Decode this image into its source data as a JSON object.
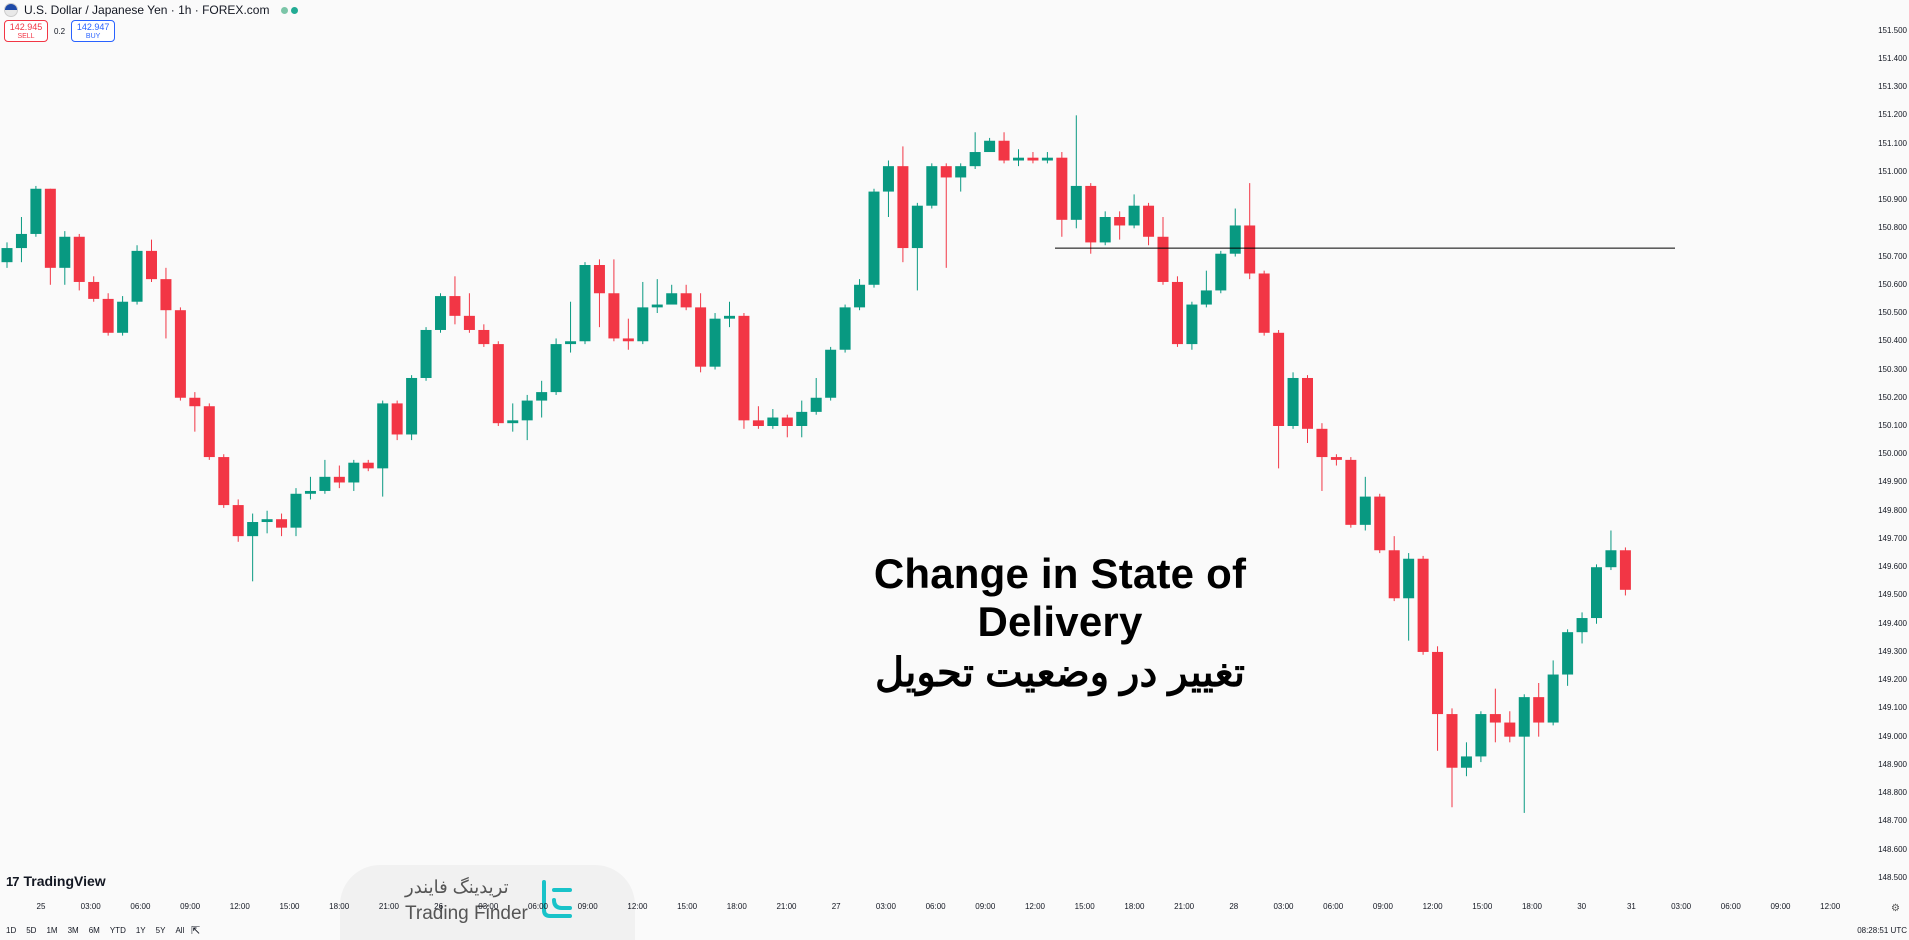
{
  "header": {
    "symbol_title": "U.S. Dollar / Japanese Yen · 1h · FOREX.com",
    "status_dot_colors": [
      "#7bc5a8",
      "#22ab94"
    ]
  },
  "trade": {
    "sell_price": "142.945",
    "sell_label": "SELL",
    "spread": "0.2",
    "buy_price": "142.947",
    "buy_label": "BUY"
  },
  "title": {
    "english": "Change in State of Delivery",
    "persian": "تغییر در وضعیت تحویل"
  },
  "branding": {
    "tradingview": "TradingView",
    "tradingview_mark": "17",
    "watermark_fa": "تریدینگ فایندر",
    "watermark_en": "Trading Finder"
  },
  "bottom_bar": {
    "periods": [
      "1D",
      "5D",
      "1M",
      "3M",
      "6M",
      "YTD",
      "1Y",
      "5Y",
      "All"
    ],
    "clock": "08:28:51 UTC"
  },
  "colors": {
    "up": "#089981",
    "down": "#f23645",
    "level_line": "#000000"
  },
  "chart_data": {
    "type": "candlestick",
    "symbol": "USDJPY",
    "timeframe": "1h",
    "y_ticks": [
      "151.500",
      "151.400",
      "151.300",
      "151.200",
      "151.100",
      "151.000",
      "150.900",
      "150.800",
      "150.700",
      "150.600",
      "150.500",
      "150.400",
      "150.300",
      "150.200",
      "150.100",
      "150.000",
      "149.900",
      "149.800",
      "149.700",
      "149.600",
      "149.500",
      "149.400",
      "149.300",
      "149.200",
      "149.100",
      "149.000",
      "148.900",
      "148.800",
      "148.700",
      "148.600",
      "148.500"
    ],
    "x_ticks": [
      "25",
      "03:00",
      "06:00",
      "09:00",
      "12:00",
      "15:00",
      "18:00",
      "21:00",
      "26",
      "03:00",
      "06:00",
      "09:00",
      "12:00",
      "15:00",
      "18:00",
      "21:00",
      "27",
      "03:00",
      "06:00",
      "09:00",
      "12:00",
      "15:00",
      "18:00",
      "21:00",
      "28",
      "03:00",
      "06:00",
      "09:00",
      "12:00",
      "15:00",
      "18:00",
      "30",
      "31",
      "03:00",
      "06:00",
      "09:00",
      "12:00"
    ],
    "ylim": [
      148.45,
      151.58
    ],
    "level_line": 150.73,
    "candles": [
      [
        150.68,
        150.73,
        150.66,
        150.75
      ],
      [
        150.73,
        150.78,
        150.68,
        150.84
      ],
      [
        150.78,
        150.94,
        150.77,
        150.95
      ],
      [
        150.94,
        150.66,
        150.6,
        150.94
      ],
      [
        150.66,
        150.77,
        150.6,
        150.79
      ],
      [
        150.77,
        150.61,
        150.58,
        150.78
      ],
      [
        150.61,
        150.55,
        150.54,
        150.63
      ],
      [
        150.55,
        150.43,
        150.42,
        150.57
      ],
      [
        150.43,
        150.54,
        150.42,
        150.56
      ],
      [
        150.54,
        150.72,
        150.53,
        150.74
      ],
      [
        150.72,
        150.62,
        150.61,
        150.76
      ],
      [
        150.62,
        150.51,
        150.41,
        150.66
      ],
      [
        150.51,
        150.2,
        150.19,
        150.52
      ],
      [
        150.2,
        150.17,
        150.08,
        150.22
      ],
      [
        150.17,
        149.99,
        149.98,
        150.18
      ],
      [
        149.99,
        149.82,
        149.81,
        150.0
      ],
      [
        149.82,
        149.71,
        149.69,
        149.84
      ],
      [
        149.71,
        149.76,
        149.55,
        149.79
      ],
      [
        149.76,
        149.77,
        149.72,
        149.8
      ],
      [
        149.77,
        149.74,
        149.71,
        149.79
      ],
      [
        149.74,
        149.86,
        149.71,
        149.88
      ],
      [
        149.86,
        149.87,
        149.84,
        149.92
      ],
      [
        149.87,
        149.92,
        149.86,
        149.98
      ],
      [
        149.92,
        149.9,
        149.88,
        149.96
      ],
      [
        149.9,
        149.97,
        149.87,
        149.98
      ],
      [
        149.97,
        149.95,
        149.94,
        149.98
      ],
      [
        149.95,
        150.18,
        149.85,
        150.19
      ],
      [
        150.18,
        150.07,
        150.05,
        150.19
      ],
      [
        150.07,
        150.27,
        150.05,
        150.28
      ],
      [
        150.27,
        150.44,
        150.26,
        150.45
      ],
      [
        150.44,
        150.56,
        150.43,
        150.57
      ],
      [
        150.56,
        150.49,
        150.46,
        150.63
      ],
      [
        150.49,
        150.44,
        150.43,
        150.57
      ],
      [
        150.44,
        150.39,
        150.38,
        150.46
      ],
      [
        150.39,
        150.11,
        150.1,
        150.4
      ],
      [
        150.11,
        150.12,
        150.08,
        150.18
      ],
      [
        150.12,
        150.19,
        150.05,
        150.21
      ],
      [
        150.19,
        150.22,
        150.13,
        150.26
      ],
      [
        150.22,
        150.39,
        150.21,
        150.41
      ],
      [
        150.39,
        150.4,
        150.36,
        150.54
      ],
      [
        150.4,
        150.67,
        150.39,
        150.68
      ],
      [
        150.67,
        150.57,
        150.45,
        150.69
      ],
      [
        150.57,
        150.41,
        150.4,
        150.69
      ],
      [
        150.41,
        150.4,
        150.37,
        150.48
      ],
      [
        150.4,
        150.52,
        150.39,
        150.61
      ],
      [
        150.52,
        150.53,
        150.5,
        150.62
      ],
      [
        150.53,
        150.57,
        150.55,
        150.6
      ],
      [
        150.57,
        150.52,
        150.51,
        150.6
      ],
      [
        150.52,
        150.31,
        150.29,
        150.57
      ],
      [
        150.31,
        150.48,
        150.3,
        150.5
      ],
      [
        150.48,
        150.49,
        150.45,
        150.54
      ],
      [
        150.49,
        150.12,
        150.09,
        150.5
      ],
      [
        150.12,
        150.1,
        150.09,
        150.17
      ],
      [
        150.1,
        150.13,
        150.09,
        150.16
      ],
      [
        150.13,
        150.1,
        150.06,
        150.14
      ],
      [
        150.1,
        150.15,
        150.06,
        150.19
      ],
      [
        150.15,
        150.2,
        150.14,
        150.27
      ],
      [
        150.2,
        150.37,
        150.19,
        150.38
      ],
      [
        150.37,
        150.52,
        150.36,
        150.53
      ],
      [
        150.52,
        150.6,
        150.51,
        150.62
      ],
      [
        150.6,
        150.93,
        150.59,
        150.94
      ],
      [
        150.93,
        151.02,
        150.84,
        151.04
      ],
      [
        151.02,
        150.73,
        150.68,
        151.09
      ],
      [
        150.73,
        150.88,
        150.58,
        150.89
      ],
      [
        150.88,
        151.02,
        150.87,
        151.03
      ],
      [
        151.02,
        150.98,
        150.66,
        151.03
      ],
      [
        150.98,
        151.02,
        150.93,
        151.03
      ],
      [
        151.02,
        151.07,
        151.01,
        151.14
      ],
      [
        151.07,
        151.11,
        151.08,
        151.12
      ],
      [
        151.11,
        151.04,
        151.03,
        151.14
      ],
      [
        151.04,
        151.05,
        151.02,
        151.08
      ],
      [
        151.05,
        151.04,
        151.03,
        151.07
      ],
      [
        151.04,
        151.05,
        151.03,
        151.07
      ],
      [
        151.05,
        150.83,
        150.77,
        151.07
      ],
      [
        150.83,
        150.95,
        150.8,
        151.2
      ],
      [
        150.95,
        150.75,
        150.71,
        150.96
      ],
      [
        150.75,
        150.84,
        150.74,
        150.86
      ],
      [
        150.84,
        150.81,
        150.76,
        150.86
      ],
      [
        150.81,
        150.88,
        150.8,
        150.92
      ],
      [
        150.88,
        150.77,
        150.74,
        150.89
      ],
      [
        150.77,
        150.61,
        150.6,
        150.84
      ],
      [
        150.61,
        150.39,
        150.38,
        150.63
      ],
      [
        150.39,
        150.53,
        150.37,
        150.54
      ],
      [
        150.53,
        150.58,
        150.52,
        150.65
      ],
      [
        150.58,
        150.71,
        150.57,
        150.72
      ],
      [
        150.71,
        150.81,
        150.7,
        150.87
      ],
      [
        150.81,
        150.64,
        150.62,
        150.96
      ],
      [
        150.64,
        150.43,
        150.42,
        150.65
      ],
      [
        150.43,
        150.1,
        149.95,
        150.44
      ],
      [
        150.1,
        150.27,
        150.09,
        150.29
      ],
      [
        150.27,
        150.09,
        150.04,
        150.28
      ],
      [
        150.09,
        149.99,
        149.87,
        150.11
      ],
      [
        149.99,
        149.98,
        149.96,
        150.0
      ],
      [
        149.98,
        149.75,
        149.74,
        149.99
      ],
      [
        149.75,
        149.85,
        149.73,
        149.92
      ],
      [
        149.85,
        149.66,
        149.65,
        149.86
      ],
      [
        149.66,
        149.49,
        149.48,
        149.71
      ],
      [
        149.49,
        149.63,
        149.34,
        149.65
      ],
      [
        149.63,
        149.3,
        149.29,
        149.64
      ],
      [
        149.3,
        149.08,
        148.95,
        149.32
      ],
      [
        149.08,
        148.89,
        148.75,
        149.1
      ],
      [
        148.89,
        148.93,
        148.86,
        148.98
      ],
      [
        148.93,
        149.08,
        148.91,
        149.09
      ],
      [
        149.08,
        149.05,
        148.98,
        149.17
      ],
      [
        149.05,
        149.0,
        148.98,
        149.09
      ],
      [
        149.0,
        149.14,
        148.73,
        149.15
      ],
      [
        149.14,
        149.05,
        149.0,
        149.19
      ],
      [
        149.05,
        149.22,
        149.04,
        149.27
      ],
      [
        149.22,
        149.37,
        149.18,
        149.38
      ],
      [
        149.37,
        149.42,
        149.33,
        149.44
      ],
      [
        149.42,
        149.6,
        149.4,
        149.61
      ],
      [
        149.6,
        149.66,
        149.59,
        149.73
      ],
      [
        149.66,
        149.52,
        149.5,
        149.67
      ]
    ]
  }
}
